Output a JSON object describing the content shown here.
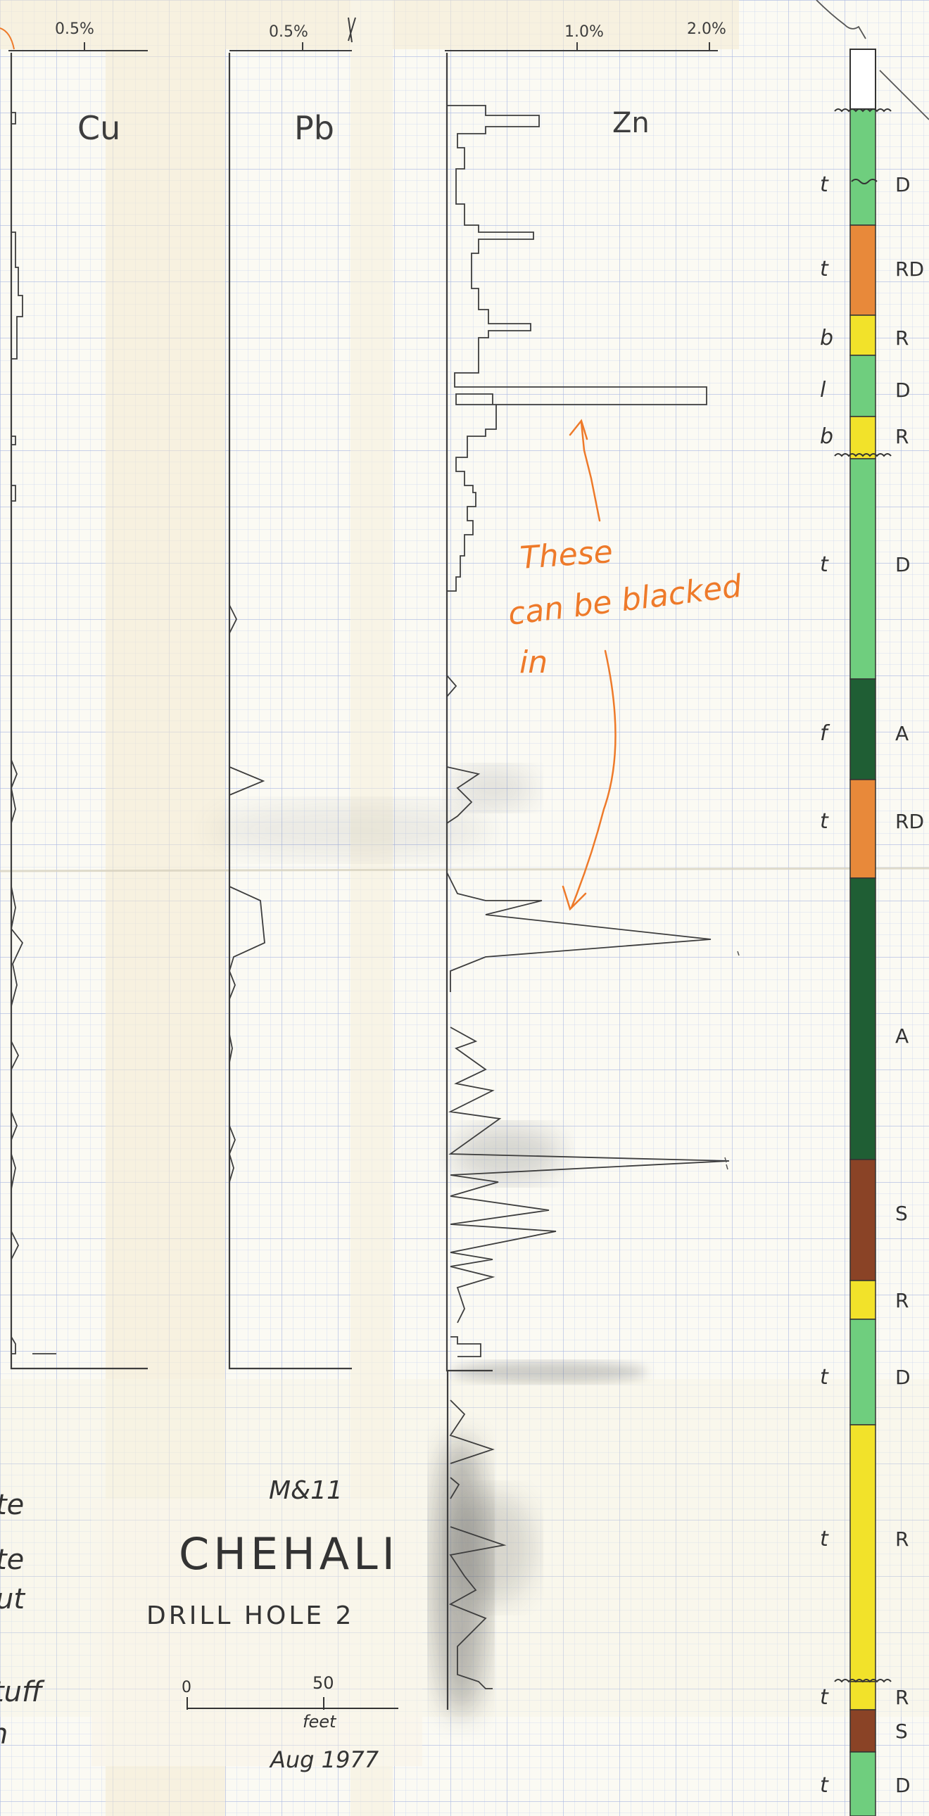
{
  "scales": {
    "cu_scale": "0.5%",
    "pb_scale": "0.5%",
    "zn_scale_1": "1.0%",
    "zn_scale_2": "2.0%"
  },
  "tracks": {
    "cu_label": "Cu",
    "pb_label": "Pb",
    "zn_label": "Zn"
  },
  "annotation": {
    "line1": "These",
    "line2": "can be blacked",
    "line3": "in"
  },
  "title_block": {
    "code": "M&11",
    "name": "CHEHALI",
    "subtitle": "DRILL HOLE 2",
    "scale_zero": "0",
    "scale_fifty": "50",
    "scale_unit": "feet",
    "date": "Aug 1977"
  },
  "left_fragments": [
    "te",
    "te",
    "ut",
    "tuff",
    "n"
  ],
  "lithology": [
    {
      "rock": "t",
      "code": "D",
      "color": "#6fce7e"
    },
    {
      "rock": "t",
      "code": "RD",
      "color": "#e8893a"
    },
    {
      "rock": "b",
      "code": "R",
      "color": "#f2e22a"
    },
    {
      "rock": "l",
      "code": "D",
      "color": "#6fce7e"
    },
    {
      "rock": "b",
      "code": "R",
      "color": "#f2e22a"
    },
    {
      "rock": "t",
      "code": "D",
      "color": "#6fce7e"
    },
    {
      "rock": "f",
      "code": "A",
      "color": "#1f5e34"
    },
    {
      "rock": "t",
      "code": "RD",
      "color": "#e8893a"
    },
    {
      "rock": "",
      "code": "A",
      "color": "#1f5e34"
    },
    {
      "rock": "",
      "code": "S",
      "color": "#8a4326"
    },
    {
      "rock": "",
      "code": "R",
      "color": "#f2e22a"
    },
    {
      "rock": "t",
      "code": "D",
      "color": "#6fce7e"
    },
    {
      "rock": "t",
      "code": "R",
      "color": "#f2e22a"
    },
    {
      "rock": "t",
      "code": "R",
      "color": "#f2e22a"
    },
    {
      "rock": "",
      "code": "S",
      "color": "#8a4326"
    },
    {
      "rock": "t",
      "code": "D",
      "color": "#6fce7e"
    }
  ],
  "colors": {
    "grid_minor": "#c9d4ef",
    "grid_major": "#9fb0de",
    "pencil": "#3d3d3d",
    "annotation": "#ee7a2a"
  }
}
